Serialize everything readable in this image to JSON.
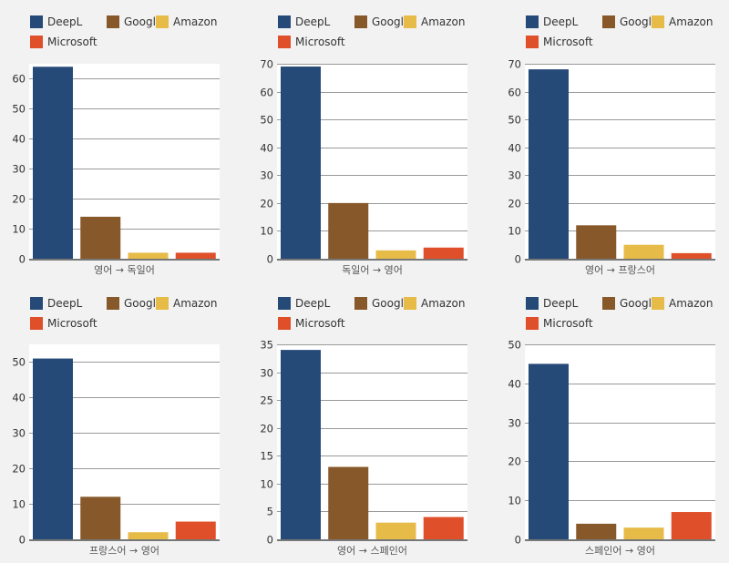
{
  "legend_colors": {
    "DeepL": "#264a78",
    "Google": "#87592a",
    "Amazon": "#e6bb48",
    "Microsoft": "#de4f2a"
  },
  "chart_data": [
    {
      "type": "bar",
      "categories": [
        "DeepL",
        "Google",
        "Amazon",
        "Microsoft"
      ],
      "values": [
        64,
        14,
        2,
        2
      ],
      "xlabel": "영어 → 독일어",
      "ylim": [
        0,
        65
      ],
      "yticks": [
        0,
        10,
        20,
        30,
        40,
        50,
        60
      ],
      "grid": true,
      "legend": "top-left"
    },
    {
      "type": "bar",
      "categories": [
        "DeepL",
        "Google",
        "Amazon",
        "Microsoft"
      ],
      "values": [
        69,
        20,
        3,
        4
      ],
      "xlabel": "독일어 → 영어",
      "ylim": [
        0,
        70
      ],
      "yticks": [
        0,
        10,
        20,
        30,
        40,
        50,
        60,
        70
      ],
      "grid": true,
      "legend": "top-left"
    },
    {
      "type": "bar",
      "categories": [
        "DeepL",
        "Google",
        "Amazon",
        "Microsoft"
      ],
      "values": [
        68,
        12,
        5,
        2
      ],
      "xlabel": "영어 → 프랑스어",
      "ylim": [
        0,
        70
      ],
      "yticks": [
        0,
        10,
        20,
        30,
        40,
        50,
        60,
        70
      ],
      "grid": true,
      "legend": "top-left"
    },
    {
      "type": "bar",
      "categories": [
        "DeepL",
        "Google",
        "Amazon",
        "Microsoft"
      ],
      "values": [
        51,
        12,
        2,
        5
      ],
      "xlabel": "프랑스어 → 영어",
      "ylim": [
        0,
        55
      ],
      "yticks": [
        0,
        10,
        20,
        30,
        40,
        50
      ],
      "grid": true,
      "legend": "top-left"
    },
    {
      "type": "bar",
      "categories": [
        "DeepL",
        "Google",
        "Amazon",
        "Microsoft"
      ],
      "values": [
        34,
        13,
        3,
        4
      ],
      "xlabel": "영어 → 스페인어",
      "ylim": [
        0,
        35
      ],
      "yticks": [
        0,
        5,
        10,
        15,
        20,
        25,
        30,
        35
      ],
      "grid": true,
      "legend": "top-left"
    },
    {
      "type": "bar",
      "categories": [
        "DeepL",
        "Google",
        "Amazon",
        "Microsoft"
      ],
      "values": [
        45,
        4,
        3,
        7
      ],
      "xlabel": "스페인어 → 영어",
      "ylim": [
        0,
        50
      ],
      "yticks": [
        0,
        10,
        20,
        30,
        40,
        50
      ],
      "grid": true,
      "legend": "top-left"
    }
  ]
}
